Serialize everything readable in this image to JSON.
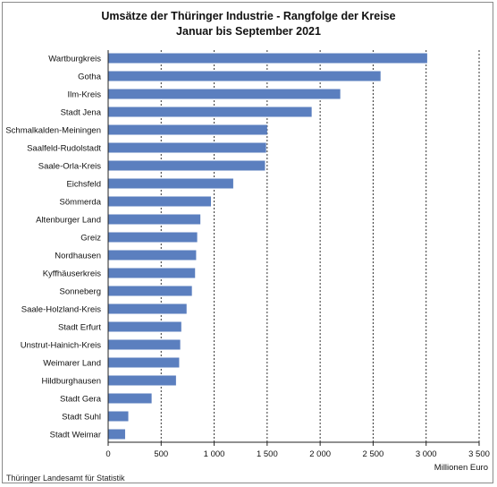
{
  "chart_data": {
    "type": "bar",
    "orientation": "horizontal",
    "title": "Umsätze der Thüringer Industrie - Rangfolge der Kreise",
    "subtitle": "Januar bis September 2021",
    "xlabel": "Millionen Euro",
    "xlim": [
      0,
      3500
    ],
    "xticks": [
      0,
      500,
      1000,
      1500,
      2000,
      2500,
      3000,
      3500
    ],
    "xtick_labels": [
      "0",
      "500",
      "1 000",
      "1 500",
      "2 000",
      "2 500",
      "3 000",
      "3 500"
    ],
    "grid": "vertical dotted",
    "bar_color": "#5b7fbf",
    "categories": [
      "Wartburgkreis",
      "Gotha",
      "Ilm-Kreis",
      "Stadt Jena",
      "Schmalkalden-Meiningen",
      "Saalfeld-Rudolstadt",
      "Saale-Orla-Kreis",
      "Eichsfeld",
      "Sömmerda",
      "Altenburger Land",
      "Greiz",
      "Nordhausen",
      "Kyffhäuserkreis",
      "Sonneberg",
      "Saale-Holzland-Kreis",
      "Stadt Erfurt",
      "Unstrut-Hainich-Kreis",
      "Weimarer Land",
      "Hildburghausen",
      "Stadt Gera",
      "Stadt Suhl",
      "Stadt Weimar"
    ],
    "values": [
      3010,
      2570,
      2190,
      1920,
      1500,
      1490,
      1480,
      1180,
      970,
      870,
      840,
      830,
      820,
      790,
      740,
      690,
      680,
      670,
      640,
      410,
      190,
      160
    ]
  },
  "source": "Thüringer Landesamt für Statistik"
}
